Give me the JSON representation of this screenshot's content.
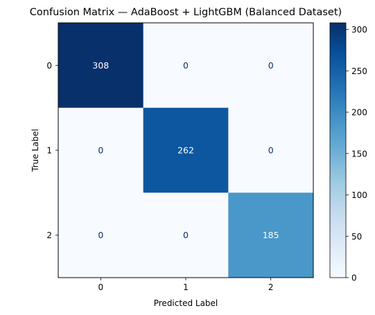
{
  "chart_data": {
    "type": "heatmap",
    "title": "Confusion Matrix — AdaBoost + LightGBM (Balanced Dataset)",
    "xlabel": "Predicted Label",
    "ylabel": "True Label",
    "x_categories": [
      "0",
      "1",
      "2"
    ],
    "y_categories": [
      "0",
      "1",
      "2"
    ],
    "values": [
      [
        308,
        0,
        0
      ],
      [
        0,
        262,
        0
      ],
      [
        0,
        0,
        185
      ]
    ],
    "colormap": "Blues",
    "colorbar": {
      "min": 0,
      "max": 308,
      "ticks": [
        0,
        50,
        100,
        150,
        200,
        250,
        300
      ]
    },
    "grid": false
  },
  "colors": {
    "text_on_dark": "#ffffff",
    "text_on_light": "#08306b"
  }
}
